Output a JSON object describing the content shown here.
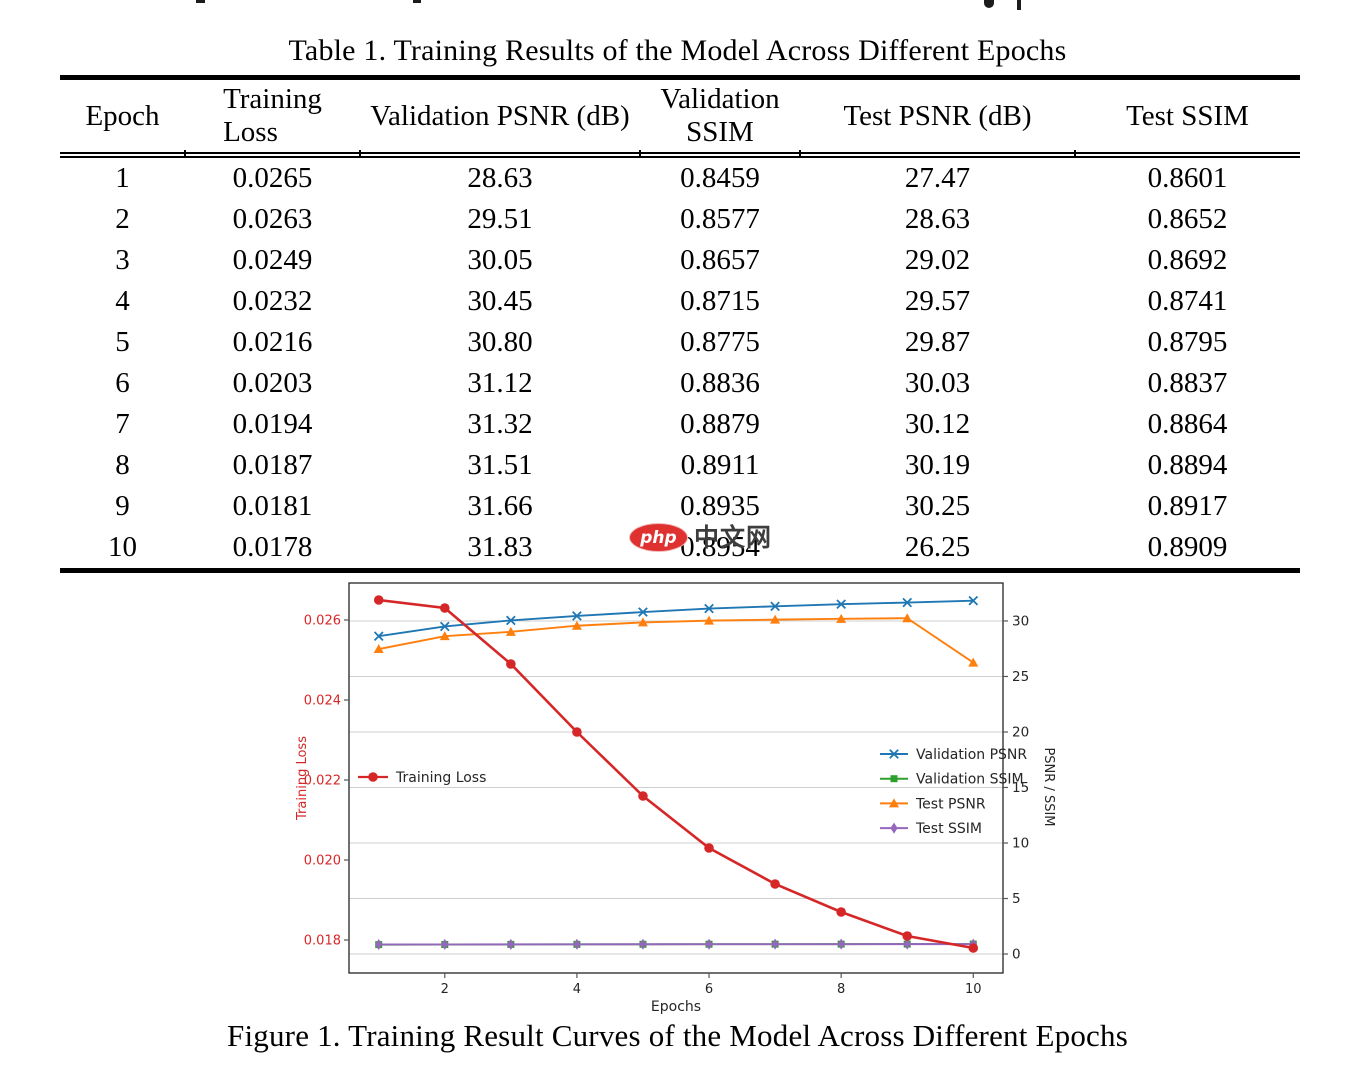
{
  "table": {
    "title": "Table 1. Training Results of the Model Across Different Epochs",
    "columns": [
      {
        "lines": [
          "Epoch"
        ],
        "align": "center"
      },
      {
        "lines": [
          "Training",
          "Loss"
        ],
        "align": "left"
      },
      {
        "lines": [
          "Validation PSNR (dB)"
        ],
        "align": "center"
      },
      {
        "lines": [
          "Validation",
          "SSIM"
        ],
        "align": "center"
      },
      {
        "lines": [
          "Test PSNR (dB)"
        ],
        "align": "center"
      },
      {
        "lines": [
          "Test SSIM"
        ],
        "align": "center"
      }
    ],
    "rows": [
      [
        "1",
        "0.0265",
        "28.63",
        "0.8459",
        "27.47",
        "0.8601"
      ],
      [
        "2",
        "0.0263",
        "29.51",
        "0.8577",
        "28.63",
        "0.8652"
      ],
      [
        "3",
        "0.0249",
        "30.05",
        "0.8657",
        "29.02",
        "0.8692"
      ],
      [
        "4",
        "0.0232",
        "30.45",
        "0.8715",
        "29.57",
        "0.8741"
      ],
      [
        "5",
        "0.0216",
        "30.80",
        "0.8775",
        "29.87",
        "0.8795"
      ],
      [
        "6",
        "0.0203",
        "31.12",
        "0.8836",
        "30.03",
        "0.8837"
      ],
      [
        "7",
        "0.0194",
        "31.32",
        "0.8879",
        "30.12",
        "0.8864"
      ],
      [
        "8",
        "0.0187",
        "31.51",
        "0.8911",
        "30.19",
        "0.8894"
      ],
      [
        "9",
        "0.0181",
        "31.66",
        "0.8935",
        "30.25",
        "0.8917"
      ],
      [
        "10",
        "0.0178",
        "31.83",
        "0.8954",
        "26.25",
        "0.8909"
      ]
    ]
  },
  "watermark": {
    "logo": "php",
    "text": "中文网",
    "logo_color": "#e03131"
  },
  "figure": {
    "caption": "Figure 1. Training Result Curves of the Model Across Different Epochs"
  },
  "chart_data": {
    "type": "line",
    "x_label": "Epochs",
    "x": [
      1,
      2,
      3,
      4,
      5,
      6,
      7,
      8,
      9,
      10
    ],
    "x_ticks": [
      2,
      4,
      6,
      8,
      10
    ],
    "x_range": [
      0.55,
      10.45
    ],
    "grid": "horizontal-at-right-ticks",
    "legend_positions": {
      "left_inside": "Training Loss",
      "right_inside": [
        "Validation PSNR",
        "Validation SSIM",
        "Test PSNR",
        "Test SSIM"
      ]
    },
    "left_axis": {
      "label": "Training Loss",
      "color": "#d62728",
      "range": [
        0.017175,
        0.026925
      ],
      "ticks": [
        {
          "label": "0.026",
          "value": 0.026
        },
        {
          "label": "0.024",
          "value": 0.024
        },
        {
          "label": "0.022",
          "value": 0.022
        },
        {
          "label": "0.020",
          "value": 0.02
        },
        {
          "label": "0.018",
          "value": 0.018
        }
      ]
    },
    "right_axis": {
      "label": "PSNR / SSIM",
      "color": "#262626",
      "range": [
        -1.71,
        33.42
      ],
      "ticks": [
        {
          "label": "0",
          "value": 0
        },
        {
          "label": "5",
          "value": 5
        },
        {
          "label": "10",
          "value": 10
        },
        {
          "label": "15",
          "value": 15
        },
        {
          "label": "20",
          "value": 20
        },
        {
          "label": "25",
          "value": 25
        },
        {
          "label": "30",
          "value": 30
        }
      ]
    },
    "series": [
      {
        "name": "Validation SSIM",
        "axis": "right",
        "color": "#2ca02c",
        "marker": "square",
        "values": [
          0.8459,
          0.8577,
          0.8657,
          0.8715,
          0.8775,
          0.8836,
          0.8879,
          0.8911,
          0.8935,
          0.8954
        ]
      },
      {
        "name": "Test SSIM",
        "axis": "right",
        "color": "#9467bd",
        "marker": "diamond",
        "values": [
          0.8601,
          0.8652,
          0.8692,
          0.8741,
          0.8795,
          0.8837,
          0.8864,
          0.8894,
          0.8917,
          0.8909
        ]
      },
      {
        "name": "Test PSNR",
        "axis": "right",
        "color": "#ff7f0e",
        "marker": "triangle",
        "values": [
          27.47,
          28.63,
          29.02,
          29.57,
          29.87,
          30.03,
          30.12,
          30.19,
          30.25,
          26.25
        ]
      },
      {
        "name": "Validation PSNR",
        "axis": "right",
        "color": "#1f77b4",
        "marker": "x",
        "values": [
          28.63,
          29.51,
          30.05,
          30.45,
          30.8,
          31.12,
          31.32,
          31.51,
          31.66,
          31.83
        ]
      },
      {
        "name": "Training Loss",
        "axis": "left",
        "color": "#d62728",
        "marker": "circle",
        "values": [
          0.0265,
          0.0263,
          0.0249,
          0.0232,
          0.0216,
          0.0203,
          0.0194,
          0.0187,
          0.0181,
          0.0178
        ]
      }
    ]
  }
}
